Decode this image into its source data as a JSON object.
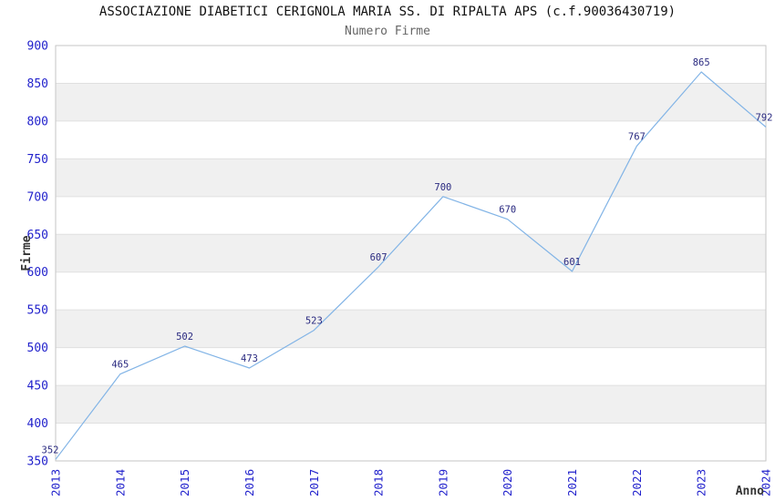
{
  "header": {
    "title": "ASSOCIAZIONE DIABETICI CERIGNOLA MARIA SS. DI RIPALTA APS (c.f.90036430719)",
    "subtitle": "Numero Firme"
  },
  "chart_data": {
    "type": "line",
    "title": "ASSOCIAZIONE DIABETICI CERIGNOLA MARIA SS. DI RIPALTA APS (c.f.90036430719)",
    "subtitle": "Numero Firme",
    "xlabel": "Anno",
    "ylabel": "Firme",
    "categories": [
      "2013",
      "2014",
      "2015",
      "2016",
      "2017",
      "2018",
      "2019",
      "2020",
      "2021",
      "2022",
      "2023",
      "2024"
    ],
    "values": [
      352,
      465,
      502,
      473,
      523,
      607,
      700,
      670,
      601,
      767,
      865,
      792
    ],
    "point_labels": [
      "352",
      "465",
      "502",
      "473",
      "523",
      "607",
      "700",
      "670",
      "601",
      "767",
      "865",
      "792"
    ],
    "ylim": [
      350,
      900
    ],
    "ytick_step": 50,
    "yticks": [
      350,
      400,
      450,
      500,
      550,
      600,
      650,
      700,
      750,
      800,
      850,
      900
    ],
    "grid": true,
    "alternating_bands": true,
    "markers": false,
    "legend_position": "none",
    "colors": {
      "line": "#82b4e6",
      "tick_label": "#2222cc",
      "point_label": "#2a2a80",
      "axis_title": "#333333",
      "band": "#f0f0f0",
      "gridline": "#e0e0e0",
      "plot_border": "#c6c6c6",
      "title": "#111111",
      "subtitle": "#666666",
      "background": "#ffffff"
    }
  }
}
